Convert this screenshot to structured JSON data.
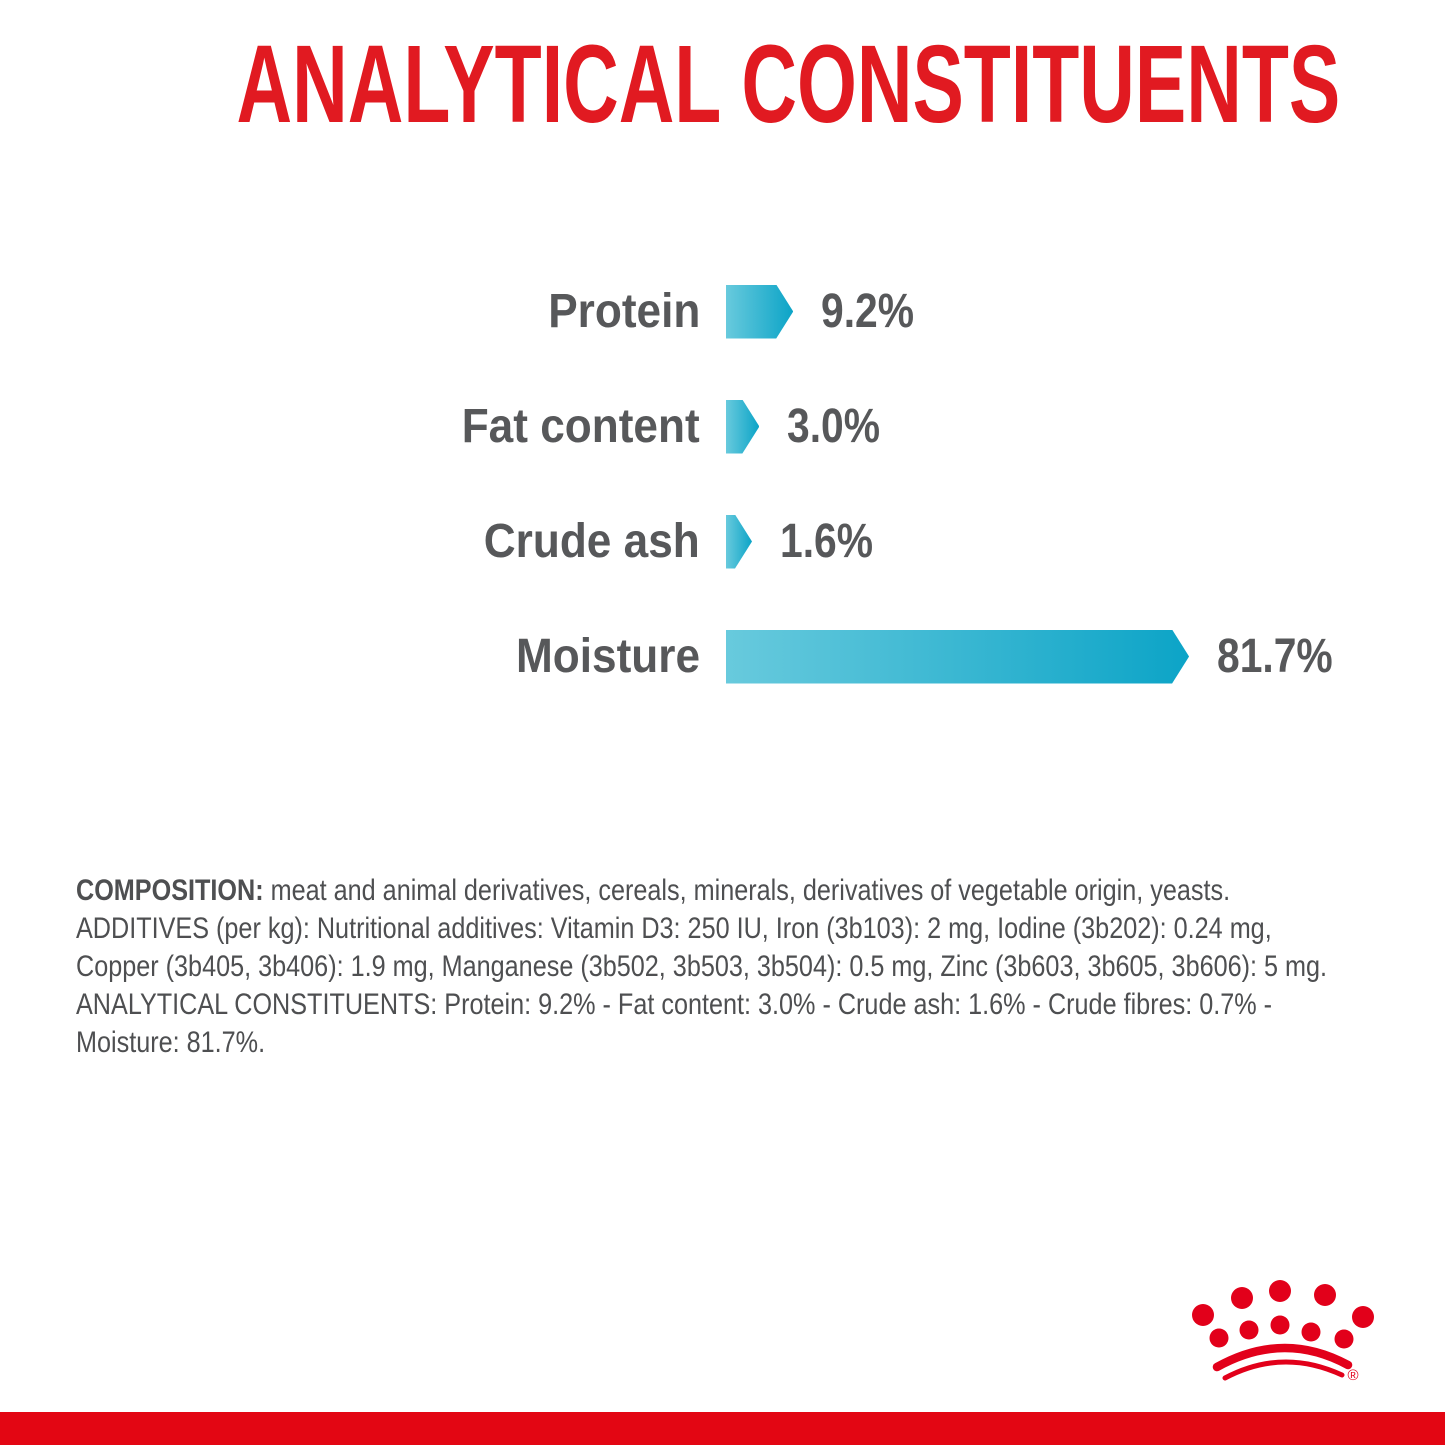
{
  "title": {
    "text": "ANALYTICAL CONSTITUENTS"
  },
  "colors": {
    "title_red": "#e11a21",
    "brand_red": "#e2001a",
    "strip_red": "#e30613",
    "bar_gradient_start": "#68cadd",
    "bar_gradient_end": "#0ca4c7",
    "label_gray": "#57585a",
    "body_gray": "#4e4f51"
  },
  "chart_data": {
    "type": "bar",
    "orientation": "horizontal",
    "title": "ANALYTICAL CONSTITUENTS",
    "unit": "%",
    "xlim": [
      0,
      100
    ],
    "grid": false,
    "legend": "none",
    "categories": [
      "Protein",
      "Fat content",
      "Crude ash",
      "Moisture"
    ],
    "values": [
      9.2,
      3.0,
      1.6,
      81.7
    ],
    "value_labels": [
      "9.2%",
      "3.0%",
      "1.6%",
      "81.7%"
    ],
    "bar_shape": "arrow-right",
    "bar_color_start": "#68cadd",
    "bar_color_end": "#0ca4c7"
  },
  "composition": {
    "lines": [
      {
        "bold": "COMPOSITION:",
        "text": " meat and animal derivatives, cereals, minerals, derivatives of vegetable origin, yeasts."
      },
      {
        "bold": "",
        "text": "ADDITIVES (per kg): Nutritional additives: Vitamin D3: 250 IU, Iron (3b103): 2 mg, Iodine (3b202): 0.24 mg,"
      },
      {
        "bold": "",
        "text": "Copper (3b405, 3b406): 1.9 mg, Manganese (3b502, 3b503, 3b504): 0.5 mg, Zinc (3b603, 3b605, 3b606): 5 mg."
      },
      {
        "bold": "",
        "text": "ANALYTICAL CONSTITUENTS: Protein: 9.2% - Fat content: 3.0% - Crude ash: 1.6% - Crude fibres: 0.7% -"
      },
      {
        "bold": "",
        "text": "Moisture: 81.7%."
      }
    ]
  },
  "logo": {
    "name": "royal-canin-crown",
    "registered_mark": "®"
  }
}
